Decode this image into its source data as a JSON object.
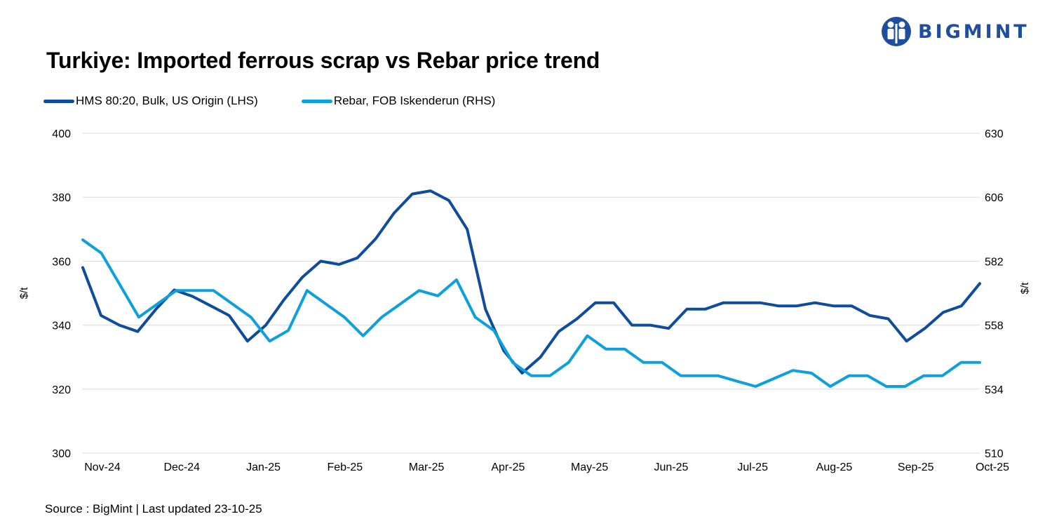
{
  "title": "Turkiye: Imported ferrous scrap vs Rebar price trend",
  "logo_text": "BIGMINT",
  "source": "Source : BigMint | Last updated 23-10-25",
  "colors": {
    "series1": "#0f4c9c",
    "series2": "#0ea0dc",
    "grid": "#d9d9d9",
    "brand": "#1f4e9c"
  },
  "chart_data": {
    "type": "line",
    "xlabels": [
      "Nov-24",
      "Dec-24",
      "Jan-25",
      "Feb-25",
      "Mar-25",
      "Apr-25",
      "May-25",
      "Jun-25",
      "Jul-25",
      "Aug-25",
      "Sep-25",
      "Oct-25"
    ],
    "ylabel_left": "$/t",
    "ylabel_right": "$/t",
    "ylim_left": [
      300,
      400
    ],
    "ylim_right": [
      510,
      630
    ],
    "yticks_left": [
      300,
      320,
      340,
      360,
      380,
      400
    ],
    "yticks_right": [
      510,
      534,
      558,
      582,
      606,
      630
    ],
    "grid": true,
    "legend_position": "top-left",
    "series": [
      {
        "name": "HMS 80:20, Bulk, US Origin (LHS)",
        "axis": "left",
        "values": [
          358,
          343,
          340,
          338,
          345,
          351,
          349,
          346,
          343,
          335,
          340,
          348,
          355,
          360,
          359,
          361,
          367,
          375,
          381,
          382,
          379,
          370,
          345,
          332,
          325,
          330,
          338,
          342,
          347,
          347,
          340,
          340,
          339,
          345,
          345,
          347,
          347,
          347,
          346,
          346,
          347,
          346,
          346,
          343,
          342,
          335,
          339,
          344,
          346,
          353
        ]
      },
      {
        "name": "Rebar, FOB Iskenderun (RHS)",
        "axis": "right",
        "values": [
          590,
          585,
          573,
          561,
          566,
          571,
          571,
          571,
          566,
          561,
          552,
          556,
          571,
          566,
          561,
          554,
          561,
          566,
          571,
          569,
          575,
          561,
          556,
          544,
          539,
          539,
          544,
          554,
          549,
          549,
          544,
          544,
          539,
          539,
          539,
          537,
          535,
          538,
          541,
          540,
          535,
          539,
          539,
          535,
          535,
          539,
          539,
          544,
          544
        ]
      }
    ]
  }
}
